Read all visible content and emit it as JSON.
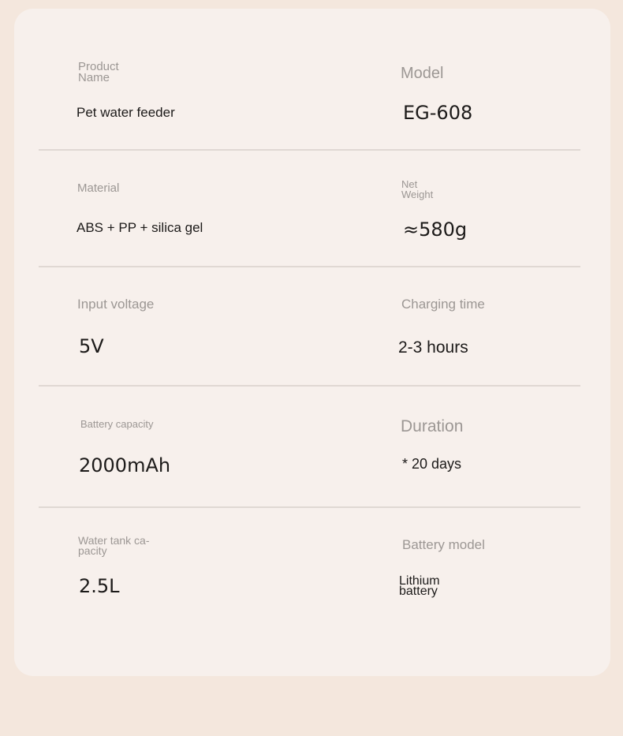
{
  "specs": [
    {
      "label": "Product Name",
      "value": "Pet water feeder"
    },
    {
      "label": "Model",
      "value": "EG-608"
    },
    {
      "label": "Material",
      "value": "ABS + PP + silica gel"
    },
    {
      "label": "Net Weight",
      "value": "≈580g"
    },
    {
      "label": "Input voltage",
      "value": "5V"
    },
    {
      "label": "Charging time",
      "value": "2-3 hours"
    },
    {
      "label": "Battery capacity",
      "value": "2000mAh"
    },
    {
      "label": "Duration",
      "value": "* 20 days"
    },
    {
      "label": "Water tank ca-pacity",
      "value": "2.5L"
    },
    {
      "label": "Battery model",
      "value": "Lithium battery"
    }
  ]
}
